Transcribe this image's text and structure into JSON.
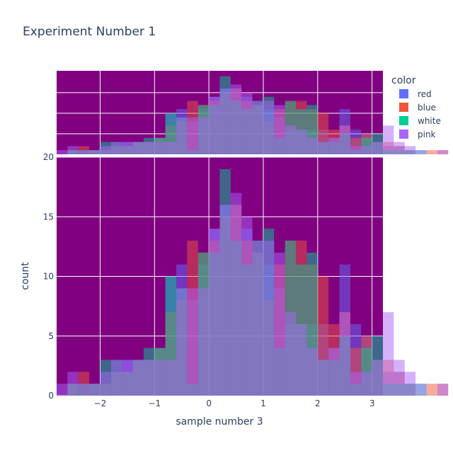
{
  "chart_data": {
    "type": "bar",
    "title": "Experiment Number 1",
    "xlabel": "sample number 3",
    "ylabel": "count",
    "barmode": "overlay",
    "bin_start": -2.8,
    "bin_width": 0.2,
    "xlim": [
      -2.8,
      3.2
    ],
    "ylim": [
      0,
      20
    ],
    "xticks": [
      -2,
      -1,
      0,
      1,
      2,
      3
    ],
    "xtick_labels": [
      "−2",
      "−1",
      "0",
      "1",
      "2",
      "3"
    ],
    "yticks": [
      0,
      5,
      10,
      15,
      20
    ],
    "ytick_labels": [
      "0",
      "5",
      "10",
      "15",
      "20"
    ],
    "plot_bg": "#800080",
    "grid": true,
    "legend": {
      "title": "color",
      "position": "top-right"
    },
    "series": [
      {
        "name": "red",
        "color": "#636efa",
        "values": [
          0,
          1,
          0,
          1,
          1,
          2,
          3,
          3,
          3,
          4,
          10,
          11,
          8,
          11,
          14,
          16,
          16,
          14,
          12,
          11,
          9,
          6,
          6,
          6,
          6,
          4,
          11,
          6,
          5,
          3,
          2,
          2,
          1,
          0,
          0,
          0
        ]
      },
      {
        "name": "blue",
        "color": "#ef553b",
        "values": [
          0,
          1,
          2,
          1,
          1,
          2,
          2,
          3,
          3,
          4,
          7,
          8,
          13,
          12,
          13,
          15,
          16,
          13,
          12,
          8,
          11,
          13,
          13,
          11,
          10,
          6,
          7,
          4,
          5,
          3,
          3,
          2,
          1,
          0,
          1,
          1
        ]
      },
      {
        "name": "white",
        "color": "#00cc96",
        "values": [
          0,
          1,
          1,
          1,
          3,
          3,
          2,
          3,
          4,
          4,
          10,
          9,
          1,
          12,
          12,
          19,
          13,
          11,
          13,
          14,
          4,
          13,
          11,
          12,
          3,
          3,
          5,
          1,
          4,
          5,
          1,
          1,
          1,
          1,
          0,
          0
        ]
      },
      {
        "name": "pink",
        "color": "#ab63fa",
        "values": [
          1,
          2,
          1,
          1,
          2,
          3,
          3,
          3,
          3,
          3,
          3,
          9,
          9,
          9,
          14,
          16,
          17,
          15,
          13,
          13,
          12,
          7,
          6,
          4,
          3,
          4,
          7,
          2,
          2,
          3,
          7,
          3,
          2,
          1,
          0,
          1
        ]
      }
    ]
  }
}
